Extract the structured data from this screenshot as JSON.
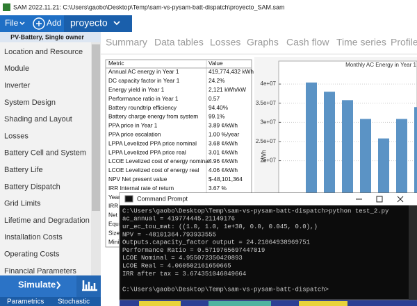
{
  "title_bar": {
    "title": "SAM 2022.11.21: C:\\Users\\gaobo\\Desktop\\Temp\\sam-vs-pysam-batt-dispatch\\proyecto_SAM.sam"
  },
  "menu": {
    "file": "File",
    "add": "Add",
    "case": "proyecto"
  },
  "sidebar": {
    "header": "PV-Battery, Single owner",
    "items": [
      "Location and Resource",
      "Module",
      "Inverter",
      "System Design",
      "Shading and Layout",
      "Losses",
      "Battery Cell and System",
      "Battery Life",
      "Battery Dispatch",
      "Grid Limits",
      "Lifetime and Degradation",
      "Installation Costs",
      "Operating Costs",
      "Financial Parameters"
    ],
    "simulate": "Simulate",
    "parametrics": "Parametrics",
    "stochastic": "Stochastic"
  },
  "tabs": [
    "Summary",
    "Data tables",
    "Losses",
    "Graphs",
    "Cash flow",
    "Time series",
    "Profile"
  ],
  "metrics_table": {
    "headers": [
      "Metric",
      "Value"
    ],
    "rows": [
      [
        "Annual AC energy in Year 1",
        "419,774,432 kWh"
      ],
      [
        "DC capacity factor in Year 1",
        "24.2%"
      ],
      [
        "Energy yield in Year 1",
        "2,121 kWh/kW"
      ],
      [
        "Performance ratio in Year 1",
        "0.57"
      ],
      [
        "Battery roundtrip efficiency",
        "94.40%"
      ],
      [
        "Battery charge energy from system",
        "99.1%"
      ],
      [
        "PPA price in Year 1",
        "3.89 ¢/kWh"
      ],
      [
        "PPA price escalation",
        "1.00 %/year"
      ],
      [
        "LPPA Levelized PPA price nominal",
        "3.68 ¢/kWh"
      ],
      [
        "LPPA Levelized PPA price real",
        "3.01 ¢/kWh"
      ],
      [
        "LCOE Levelized cost of energy nominal",
        "4.96 ¢/kWh"
      ],
      [
        "LCOE Levelized cost of energy real",
        "4.06 ¢/kWh"
      ],
      [
        "NPV Net present value",
        "$-48,101,364"
      ],
      [
        "IRR Internal rate of return",
        "3.67 %"
      ]
    ],
    "partial_rows": [
      "Year I",
      "IRR at",
      "Net ca",
      "Equity",
      "Size o",
      "Minim"
    ]
  },
  "chart_data": {
    "type": "bar",
    "title": "Monthly AC Energy in Year 1",
    "y_label": "kWh",
    "values": [
      40400000,
      38000000,
      35800000,
      30900000,
      25800000,
      30900000,
      34000000
    ],
    "color": "#5b93c5",
    "ylim": [
      0,
      46000000
    ],
    "yticks": [
      {
        "value": 20000000,
        "label": "2e+07"
      },
      {
        "value": 25000000,
        "label": "2.5e+07"
      },
      {
        "value": 30000000,
        "label": "3e+07"
      },
      {
        "value": 35000000,
        "label": "3.5e+07"
      },
      {
        "value": 40000000,
        "label": "4e+07"
      }
    ],
    "grid": true
  },
  "console": {
    "title": "Command Prompt",
    "lines": [
      "C:\\Users\\gaobo\\Desktop\\Temp\\sam-vs-pysam-batt-dispatch>python test_2.py",
      "ac_annual =  419774445.21149176",
      "ur_ec_tou_mat:  ((1.0, 1.0, 1e+38, 0.0, 0.045, 0.0),)",
      "NPV =  -48101364.793933555",
      "Outputs.capacity_factor output =  24.21064938969751",
      "Performance Ratio =  0.5719765697447019",
      "LCOE Nominal =  4.955072350420893",
      "LCOE Real =  4.060502161650665",
      "IRR after tax =  3.674351046849664",
      "C:\\Users\\gaobo\\Desktop\\Temp\\sam-vs-pysam-batt-dispatch>"
    ]
  }
}
